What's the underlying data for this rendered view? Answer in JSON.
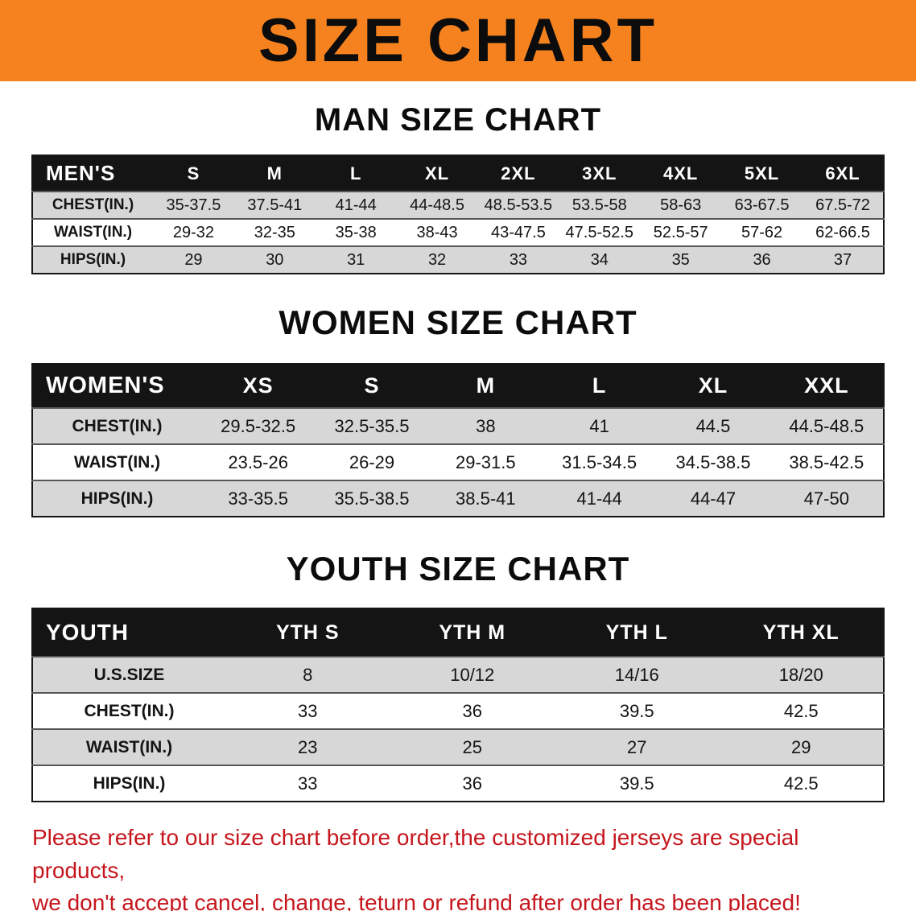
{
  "banner": {
    "title": "SIZE CHART"
  },
  "sections": [
    {
      "id": "men",
      "heading": "MAN SIZE CHART",
      "table": {
        "header": [
          "MEN'S",
          "S",
          "M",
          "L",
          "XL",
          "2XL",
          "3XL",
          "4XL",
          "5XL",
          "6XL"
        ],
        "rows": [
          [
            "CHEST(IN.)",
            "35-37.5",
            "37.5-41",
            "41-44",
            "44-48.5",
            "48.5-53.5",
            "53.5-58",
            "58-63",
            "63-67.5",
            "67.5-72"
          ],
          [
            "WAIST(IN.)",
            "29-32",
            "32-35",
            "35-38",
            "38-43",
            "43-47.5",
            "47.5-52.5",
            "52.5-57",
            "57-62",
            "62-66.5"
          ],
          [
            "HIPS(IN.)",
            "29",
            "30",
            "31",
            "32",
            "33",
            "34",
            "35",
            "36",
            "37"
          ]
        ]
      }
    },
    {
      "id": "women",
      "heading": "WOMEN SIZE CHART",
      "table": {
        "header": [
          "WOMEN'S",
          "XS",
          "S",
          "M",
          "L",
          "XL",
          "XXL"
        ],
        "rows": [
          [
            "CHEST(IN.)",
            "29.5-32.5",
            "32.5-35.5",
            "38",
            "41",
            "44.5",
            "44.5-48.5"
          ],
          [
            "WAIST(IN.)",
            "23.5-26",
            "26-29",
            "29-31.5",
            "31.5-34.5",
            "34.5-38.5",
            "38.5-42.5"
          ],
          [
            "HIPS(IN.)",
            "33-35.5",
            "35.5-38.5",
            "38.5-41",
            "41-44",
            "44-47",
            "47-50"
          ]
        ]
      }
    },
    {
      "id": "youth",
      "heading": "YOUTH SIZE CHART",
      "table": {
        "header": [
          "YOUTH",
          "YTH S",
          "YTH M",
          "YTH L",
          "YTH XL"
        ],
        "rows": [
          [
            "U.S.SIZE",
            "8",
            "10/12",
            "14/16",
            "18/20"
          ],
          [
            "CHEST(IN.)",
            "33",
            "36",
            "39.5",
            "42.5"
          ],
          [
            "WAIST(IN.)",
            "23",
            "25",
            "27",
            "29"
          ],
          [
            "HIPS(IN.)",
            "33",
            "36",
            "39.5",
            "42.5"
          ]
        ]
      }
    }
  ],
  "footer": {
    "line1": "Please refer to our size chart before order,the customized jerseys are special products,",
    "line2": "we don't accept cancel, change, teturn or refund after order has been placed!"
  },
  "colors": {
    "banner_bg": "#f6821f",
    "banner_text": "#0c0c0c",
    "table_header_bg": "#141414",
    "table_header_text": "#ffffff",
    "row_stripe": "#d7d7d7",
    "footer_text": "#c5161d"
  }
}
